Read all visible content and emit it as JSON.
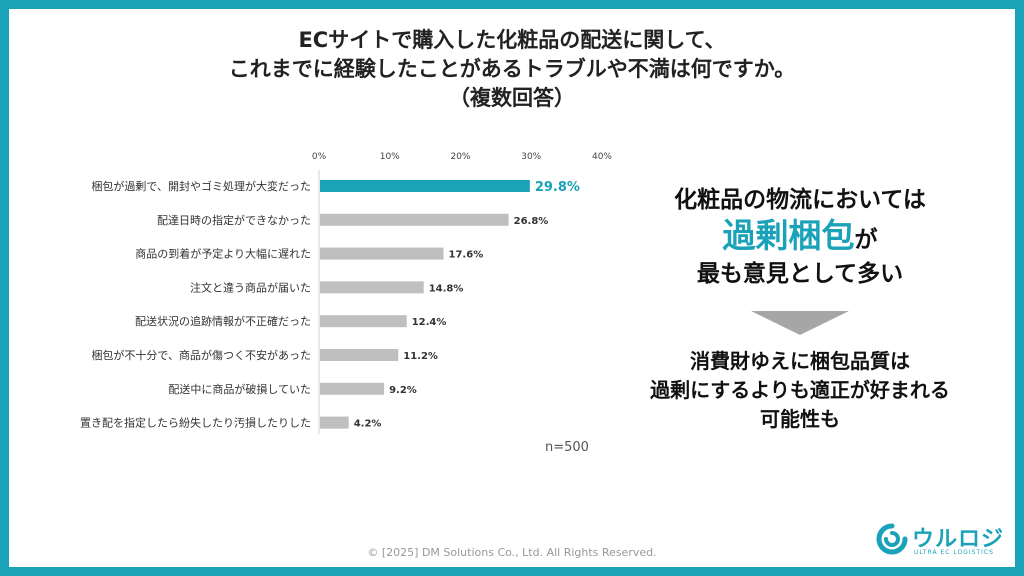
{
  "title": {
    "line1": "ECサイトで購入した化粧品の配送に関して、",
    "line2": "これまでに経験したことがあるトラブルや不満は何ですか。",
    "line3": "（複数回答）"
  },
  "chart_data": {
    "type": "bar",
    "orientation": "horizontal",
    "categories": [
      "梱包が過剰で、開封やゴミ処理が大変だった",
      "配達日時の指定ができなかった",
      "商品の到着が予定より大幅に遅れた",
      "注文と違う商品が届いた",
      "配送状況の追跡情報が不正確だった",
      "梱包が不十分で、商品が傷つく不安があった",
      "配送中に商品が破損していた",
      "置き配を指定したら紛失したり汚損したりした"
    ],
    "values": [
      29.8,
      26.8,
      17.6,
      14.8,
      12.4,
      11.2,
      9.2,
      4.2
    ],
    "value_labels": [
      "29.8%",
      "26.8%",
      "17.6%",
      "14.8%",
      "12.4%",
      "11.2%",
      "9.2%",
      "4.2%"
    ],
    "xlim": [
      0,
      40
    ],
    "ticks": [
      "0%",
      "10%",
      "20%",
      "30%",
      "40%"
    ],
    "grid": false,
    "highlight_index": 0,
    "colors": {
      "highlight": "#1aa3b8",
      "default": "#bfbfbf"
    },
    "n_label": "n=500"
  },
  "panel": {
    "line1": "化粧品の物流においては",
    "highlight": "過剰梱包",
    "highlight_suffix": "が",
    "line3": "最も意見として多い",
    "conclusion1": "消費財ゆえに梱包品質は",
    "conclusion2": "過剰にするよりも適正が好まれる",
    "conclusion3": "可能性も"
  },
  "footer": "© [2025] DM Solutions Co., Ltd. All Rights Reserved.",
  "logo": {
    "text": "ウルロジ",
    "sub": "ULTRA EC LOGISTICS",
    "color": "#1aa3b8"
  }
}
